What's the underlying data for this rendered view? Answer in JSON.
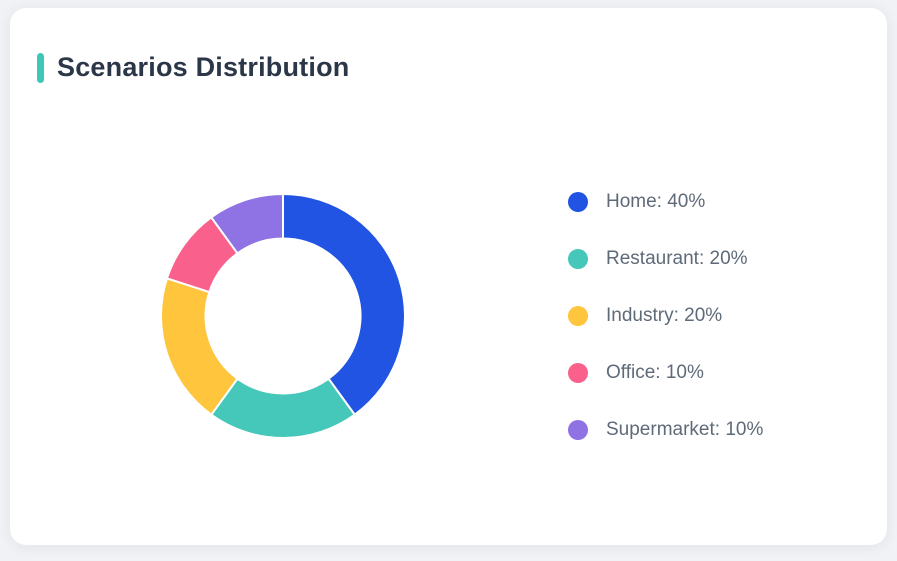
{
  "card": {
    "title": "Scenarios Distribution",
    "accent_color": "#3ec6b8"
  },
  "chart_data": {
    "type": "pie",
    "subtype": "donut",
    "title": "Scenarios Distribution",
    "categories": [
      "Home",
      "Restaurant",
      "Industry",
      "Office",
      "Supermarket"
    ],
    "values": [
      40,
      20,
      20,
      10,
      10
    ],
    "unit": "%",
    "colors": [
      "#2254e3",
      "#45c7b9",
      "#fec53d",
      "#f9618c",
      "#8f72e4"
    ],
    "legend_labels": [
      "Home: 40%",
      "Restaurant: 20%",
      "Industry: 20%",
      "Office: 10%",
      "Supermarket: 10%"
    ],
    "legend_position": "right",
    "start_angle_deg": 0,
    "direction": "clockwise",
    "donut_hole_ratio": 0.635,
    "slice_border_color": "#ffffff",
    "slice_border_width": 2
  }
}
